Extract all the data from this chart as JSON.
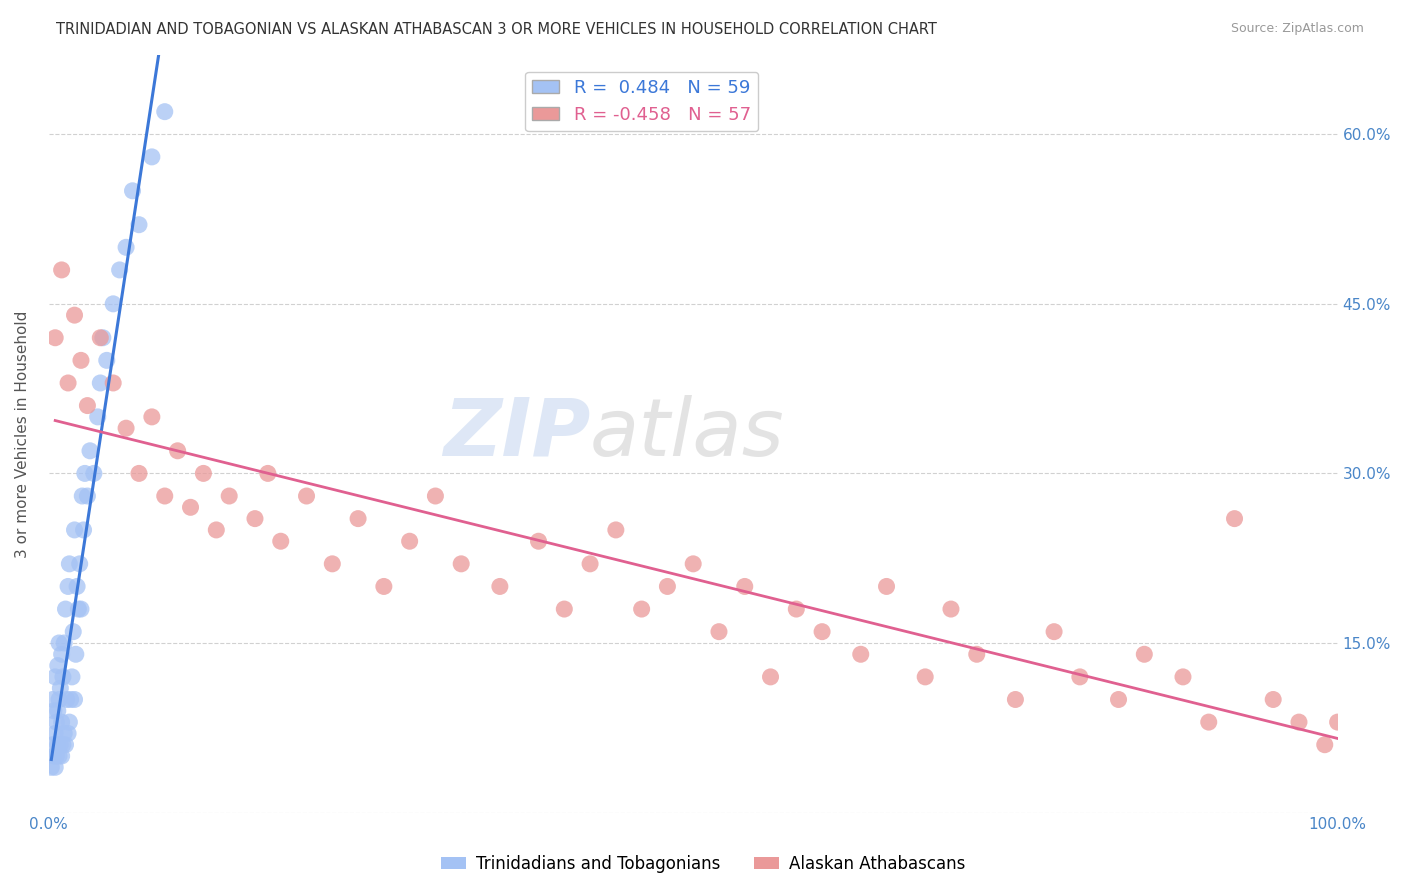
{
  "title": "TRINIDADIAN AND TOBAGONIAN VS ALASKAN ATHABASCAN 3 OR MORE VEHICLES IN HOUSEHOLD CORRELATION CHART",
  "source": "Source: ZipAtlas.com",
  "ylabel": "3 or more Vehicles in Household",
  "xlim": [
    0.0,
    1.0
  ],
  "ylim": [
    0.0,
    0.67
  ],
  "yticks": [
    0.0,
    0.15,
    0.3,
    0.45,
    0.6
  ],
  "ytick_labels_right": [
    "",
    "15.0%",
    "30.0%",
    "45.0%",
    "60.0%"
  ],
  "xticks": [
    0.0,
    0.25,
    0.5,
    0.75,
    1.0
  ],
  "xtick_labels": [
    "0.0%",
    "",
    "",
    "",
    "100.0%"
  ],
  "blue_color": "#a4c2f4",
  "pink_color": "#ea9999",
  "blue_line_color": "#3c78d8",
  "pink_line_color": "#e06090",
  "R_blue": 0.484,
  "N_blue": 59,
  "R_pink": -0.458,
  "N_pink": 57,
  "legend_label_blue": "Trinidadians and Tobagonians",
  "legend_label_pink": "Alaskan Athabascans",
  "watermark_zip": "ZIP",
  "watermark_atlas": "atlas",
  "background_color": "#ffffff",
  "grid_color": "#cccccc",
  "blue_scatter_x": [
    0.002,
    0.003,
    0.003,
    0.004,
    0.004,
    0.005,
    0.005,
    0.005,
    0.006,
    0.006,
    0.007,
    0.007,
    0.007,
    0.008,
    0.008,
    0.008,
    0.009,
    0.009,
    0.01,
    0.01,
    0.01,
    0.011,
    0.011,
    0.012,
    0.012,
    0.013,
    0.013,
    0.014,
    0.015,
    0.015,
    0.016,
    0.016,
    0.017,
    0.018,
    0.019,
    0.02,
    0.02,
    0.021,
    0.022,
    0.023,
    0.024,
    0.025,
    0.026,
    0.027,
    0.028,
    0.03,
    0.032,
    0.035,
    0.038,
    0.04,
    0.042,
    0.045,
    0.05,
    0.055,
    0.06,
    0.065,
    0.07,
    0.08,
    0.09
  ],
  "blue_scatter_y": [
    0.04,
    0.06,
    0.1,
    0.05,
    0.09,
    0.04,
    0.07,
    0.12,
    0.05,
    0.08,
    0.06,
    0.09,
    0.13,
    0.05,
    0.1,
    0.15,
    0.06,
    0.11,
    0.05,
    0.08,
    0.14,
    0.06,
    0.12,
    0.07,
    0.15,
    0.06,
    0.18,
    0.1,
    0.07,
    0.2,
    0.08,
    0.22,
    0.1,
    0.12,
    0.16,
    0.1,
    0.25,
    0.14,
    0.2,
    0.18,
    0.22,
    0.18,
    0.28,
    0.25,
    0.3,
    0.28,
    0.32,
    0.3,
    0.35,
    0.38,
    0.42,
    0.4,
    0.45,
    0.48,
    0.5,
    0.55,
    0.52,
    0.58,
    0.62
  ],
  "pink_scatter_x": [
    0.005,
    0.01,
    0.015,
    0.02,
    0.025,
    0.03,
    0.04,
    0.05,
    0.06,
    0.07,
    0.08,
    0.09,
    0.1,
    0.11,
    0.12,
    0.13,
    0.14,
    0.16,
    0.17,
    0.18,
    0.2,
    0.22,
    0.24,
    0.26,
    0.28,
    0.3,
    0.32,
    0.35,
    0.38,
    0.4,
    0.42,
    0.44,
    0.46,
    0.48,
    0.5,
    0.52,
    0.54,
    0.56,
    0.58,
    0.6,
    0.63,
    0.65,
    0.68,
    0.7,
    0.72,
    0.75,
    0.78,
    0.8,
    0.83,
    0.85,
    0.88,
    0.9,
    0.92,
    0.95,
    0.97,
    0.99,
    1.0
  ],
  "pink_scatter_y": [
    0.42,
    0.48,
    0.38,
    0.44,
    0.4,
    0.36,
    0.42,
    0.38,
    0.34,
    0.3,
    0.35,
    0.28,
    0.32,
    0.27,
    0.3,
    0.25,
    0.28,
    0.26,
    0.3,
    0.24,
    0.28,
    0.22,
    0.26,
    0.2,
    0.24,
    0.28,
    0.22,
    0.2,
    0.24,
    0.18,
    0.22,
    0.25,
    0.18,
    0.2,
    0.22,
    0.16,
    0.2,
    0.12,
    0.18,
    0.16,
    0.14,
    0.2,
    0.12,
    0.18,
    0.14,
    0.1,
    0.16,
    0.12,
    0.1,
    0.14,
    0.12,
    0.08,
    0.26,
    0.1,
    0.08,
    0.06,
    0.08
  ]
}
